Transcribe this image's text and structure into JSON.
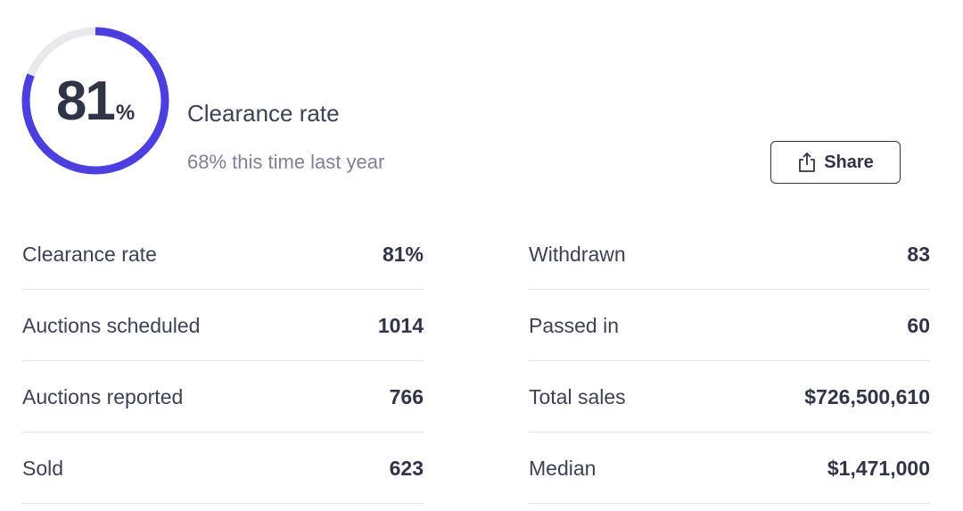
{
  "gauge": {
    "value": 81,
    "unit": "%"
  },
  "header": {
    "title": "Clearance rate",
    "subtitle": "68% this time last year"
  },
  "share_button": {
    "label": "Share"
  },
  "table": {
    "left": [
      [
        "Clearance rate",
        "81%"
      ],
      [
        "Auctions scheduled",
        "1014"
      ],
      [
        "Auctions reported",
        "766"
      ],
      [
        "Sold",
        "623"
      ]
    ],
    "right": [
      [
        "Withdrawn",
        "83"
      ],
      [
        "Passed in",
        "60"
      ],
      [
        "Total sales",
        "$726,500,610"
      ],
      [
        "Median",
        "$1,471,000"
      ]
    ]
  }
}
